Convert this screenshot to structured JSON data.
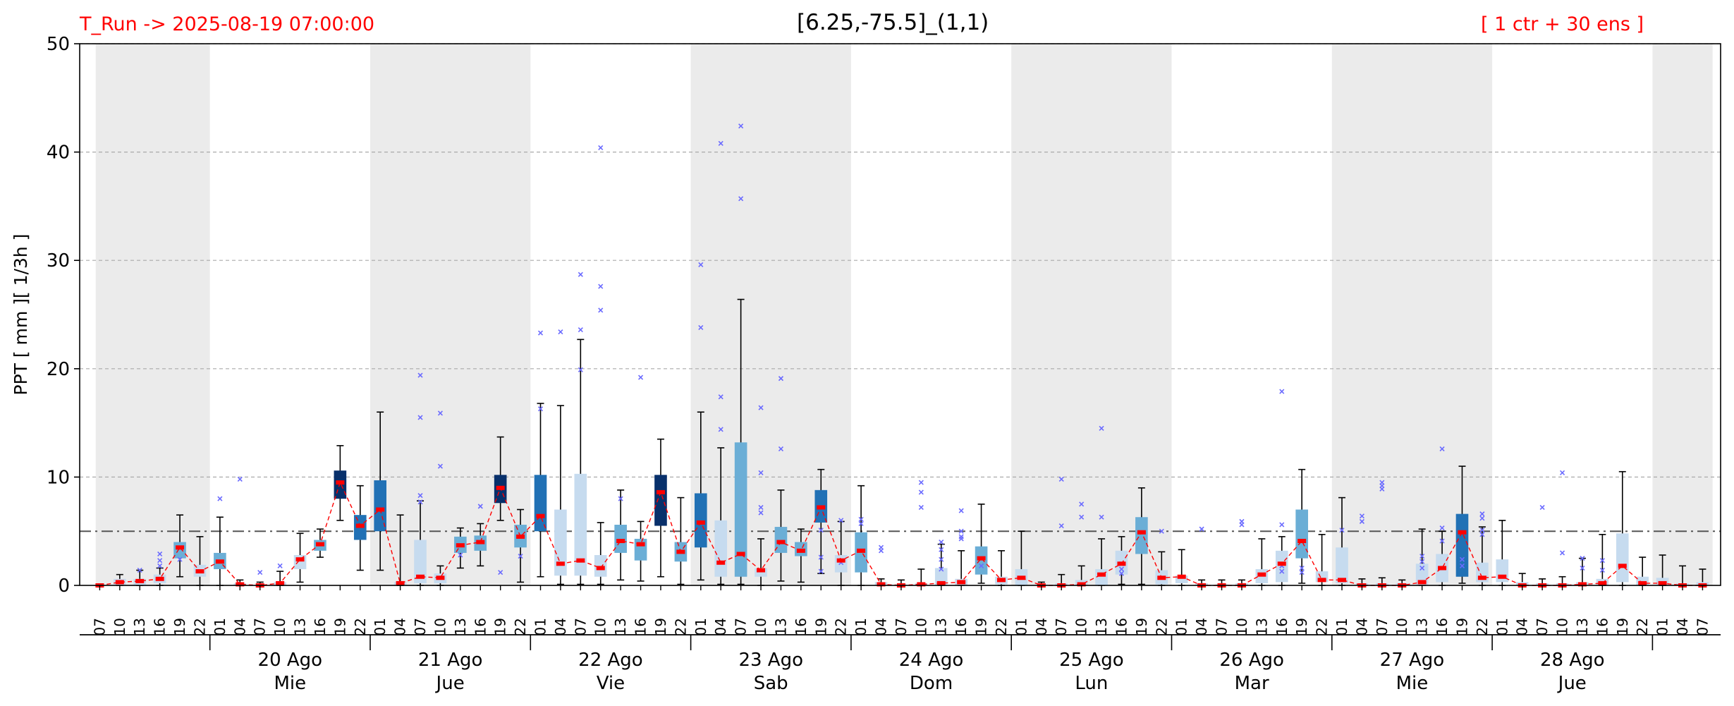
{
  "header": {
    "run_label": "T_Run -> 2025-08-19  07:00:00",
    "title": "[6.25,-75.5]_(1,1)",
    "ensemble_label": "[ 1 ctr + 30 ens ]"
  },
  "chart_data": {
    "type": "boxplot",
    "ylabel": "PPT  [ mm ][ 1/3h ]",
    "ylim": [
      0,
      50
    ],
    "yticks": [
      0,
      10,
      20,
      30,
      40,
      50
    ],
    "grid": true,
    "threshold": 5,
    "hours": [
      "07",
      "10",
      "13",
      "16",
      "19",
      "22",
      "01",
      "04",
      "07",
      "10",
      "13",
      "16",
      "19",
      "22",
      "01",
      "04",
      "07",
      "10",
      "13",
      "16",
      "19",
      "22",
      "01",
      "04",
      "07",
      "10",
      "13",
      "16",
      "19",
      "22",
      "01",
      "04",
      "07",
      "10",
      "13",
      "16",
      "19",
      "22",
      "01",
      "04",
      "07",
      "10",
      "13",
      "16",
      "19",
      "22",
      "01",
      "04",
      "07",
      "10",
      "13",
      "16",
      "19",
      "22",
      "01",
      "04",
      "07",
      "10",
      "13",
      "16",
      "19",
      "22",
      "01",
      "04",
      "07",
      "10",
      "13",
      "16",
      "19",
      "22",
      "01",
      "04",
      "07",
      "10",
      "13",
      "16",
      "19",
      "22",
      "01",
      "04",
      "07"
    ],
    "days": [
      {
        "date": "20 Ago",
        "weekday": "Mie"
      },
      {
        "date": "21 Ago",
        "weekday": "Jue"
      },
      {
        "date": "22 Ago",
        "weekday": "Vie"
      },
      {
        "date": "23 Ago",
        "weekday": "Sab"
      },
      {
        "date": "24 Ago",
        "weekday": "Dom"
      },
      {
        "date": "25 Ago",
        "weekday": "Lun"
      },
      {
        "date": "26 Ago",
        "weekday": "Mar"
      },
      {
        "date": "27 Ago",
        "weekday": "Mie"
      },
      {
        "date": "28 Ago",
        "weekday": "Jue"
      }
    ],
    "boxes": [
      [
        0,
        0,
        0,
        0,
        0
      ],
      [
        0,
        0,
        0.2,
        0.6,
        1
      ],
      [
        0,
        0,
        0.2,
        0.6,
        1.4
      ],
      [
        0,
        0.2,
        0.6,
        1,
        1.6
      ],
      [
        0.8,
        2.5,
        3.5,
        4,
        6.5
      ],
      [
        0,
        0.8,
        1.3,
        1.9,
        4.5
      ],
      [
        0,
        1.5,
        2.5,
        3,
        6.3
      ],
      [
        0,
        0,
        0,
        0.2,
        0.5
      ],
      [
        0,
        0,
        0,
        0,
        0.3
      ],
      [
        0,
        0,
        0.1,
        0.3,
        1.3
      ],
      [
        0.3,
        1.5,
        2.3,
        2.8,
        4.8
      ],
      [
        2.6,
        3.2,
        3.8,
        4.2,
        5.2
      ],
      [
        6,
        8,
        9.5,
        10.6,
        12.9
      ],
      [
        1.4,
        4.2,
        5.5,
        6.5,
        9.2
      ],
      [
        1.4,
        5,
        7,
        9.7,
        16
      ],
      [
        0,
        0,
        0.1,
        0.3,
        6.5
      ],
      [
        0,
        0.2,
        0.7,
        4.2,
        7.8
      ],
      [
        0,
        0.2,
        0.6,
        1.1,
        1.8
      ],
      [
        1.6,
        3,
        3.7,
        4.5,
        5.3
      ],
      [
        1.8,
        3.2,
        3.9,
        4.6,
        5.7
      ],
      [
        6,
        7.6,
        9.2,
        10.2,
        13.7
      ],
      [
        0.3,
        3.5,
        4.5,
        5.6,
        7
      ],
      [
        0.8,
        5,
        6.5,
        10.2,
        16.8
      ],
      [
        0.1,
        0.9,
        1.8,
        7,
        16.6
      ],
      [
        0.1,
        0.9,
        2.2,
        10.3,
        22.7
      ],
      [
        0.1,
        0.8,
        1.5,
        2.8,
        5.8
      ],
      [
        0.5,
        3,
        4,
        5.6,
        8.8
      ],
      [
        0.4,
        2.3,
        3.8,
        4.3,
        5.9
      ],
      [
        0.8,
        5.5,
        8.5,
        10.2,
        13.5
      ],
      [
        0.1,
        2.2,
        3,
        4,
        8.1
      ],
      [
        0.5,
        3.5,
        5.8,
        8.5,
        16
      ],
      [
        0.1,
        0.8,
        2.2,
        6,
        12.7
      ],
      [
        0.1,
        0.8,
        2.9,
        13.2,
        26.4
      ],
      [
        0,
        0.8,
        1.3,
        1.6,
        4.3
      ],
      [
        0.4,
        3,
        4,
        5.4,
        8.8
      ],
      [
        0.3,
        2.7,
        3.2,
        4,
        5.2
      ],
      [
        1.1,
        5.8,
        7.2,
        8.8,
        10.7
      ],
      [
        0,
        1.2,
        2.1,
        2.8,
        5.9
      ],
      [
        0,
        1.2,
        3.2,
        4.9,
        9.2
      ],
      [
        0,
        0,
        0,
        0.3,
        0.6
      ],
      [
        0,
        0,
        0,
        0.1,
        0.5
      ],
      [
        0,
        0,
        0.1,
        0.2,
        1.5
      ],
      [
        0,
        0,
        0.2,
        1.6,
        3.8
      ],
      [
        0,
        0,
        0.3,
        0.6,
        3.2
      ],
      [
        0.2,
        1,
        2.5,
        3.6,
        7.5
      ],
      [
        0,
        0.1,
        0.4,
        0.8,
        3.2
      ],
      [
        0,
        0,
        0.6,
        1.5,
        5
      ],
      [
        0,
        0,
        0,
        0.1,
        0.3
      ],
      [
        0,
        0,
        0,
        0.2,
        1
      ],
      [
        0,
        0,
        0.1,
        0.5,
        1.8
      ],
      [
        0,
        0,
        0.9,
        1.5,
        4.3
      ],
      [
        0.1,
        1,
        2,
        3.2,
        4.5
      ],
      [
        0.1,
        2.9,
        4.9,
        6.3,
        9
      ],
      [
        0,
        0.1,
        0.8,
        1.4,
        3.1
      ],
      [
        0,
        0.2,
        0.7,
        0.9,
        3.3
      ],
      [
        0,
        0,
        0,
        0.2,
        0.5
      ],
      [
        0,
        0,
        0,
        0.1,
        0.5
      ],
      [
        0,
        0,
        0,
        0.2,
        0.5
      ],
      [
        0,
        0.2,
        1,
        1.5,
        4.3
      ],
      [
        0,
        0.3,
        2,
        3.2,
        4.5
      ],
      [
        0.2,
        2.5,
        4,
        7,
        10.7
      ],
      [
        0,
        0.3,
        0.5,
        1.3,
        4.7
      ],
      [
        0,
        0.2,
        0.5,
        3.5,
        8.1
      ],
      [
        0,
        0,
        0,
        0.2,
        0.6
      ],
      [
        0,
        0,
        0,
        0.2,
        0.7
      ],
      [
        0,
        0,
        0,
        0.2,
        0.5
      ],
      [
        0,
        0,
        0.4,
        2,
        5.2
      ],
      [
        0,
        0.3,
        1.6,
        2.9,
        5
      ],
      [
        0.2,
        0.8,
        5,
        6.6,
        11
      ],
      [
        0,
        0.3,
        0.7,
        2.1,
        5.4
      ],
      [
        0,
        0.3,
        0.8,
        2.4,
        6
      ],
      [
        0,
        0,
        0,
        0.3,
        1.1
      ],
      [
        0,
        0,
        0,
        0.2,
        0.6
      ],
      [
        0,
        0,
        0,
        0.2,
        0.8
      ],
      [
        0,
        0,
        0,
        0.3,
        2.5
      ],
      [
        0,
        0,
        0.2,
        0.6,
        4.7
      ],
      [
        0,
        0.3,
        1.7,
        4.8,
        10.5
      ],
      [
        0,
        0,
        0.2,
        0.8,
        2.6
      ],
      [
        0,
        0,
        0.2,
        0.7,
        2.8
      ],
      [
        0,
        0,
        0,
        0.2,
        1.8
      ],
      [
        0,
        0,
        0,
        0.3,
        1.5
      ]
    ],
    "ensemble_mean": [
      0,
      0.3,
      0.4,
      0.6,
      3.5,
      1.3,
      2.2,
      0.1,
      0,
      0.2,
      2.4,
      3.8,
      9.5,
      5.5,
      7,
      0.2,
      0.8,
      0.7,
      3.7,
      4,
      9,
      4.5,
      6.4,
      2,
      2.3,
      1.6,
      4.1,
      3.8,
      8.6,
      3.1,
      5.8,
      2.1,
      2.9,
      1.4,
      4,
      3.2,
      7.2,
      2.3,
      3.2,
      0.1,
      0,
      0.1,
      0.2,
      0.3,
      2.5,
      0.5,
      0.7,
      0,
      0,
      0.1,
      1,
      2,
      4.9,
      0.7,
      0.8,
      0,
      0,
      0,
      1,
      2,
      4.1,
      0.5,
      0.5,
      0,
      0,
      0,
      0.3,
      1.6,
      4.9,
      0.7,
      0.8,
      0,
      0,
      0,
      0.1,
      0.2,
      1.8,
      0.2,
      0.2,
      0,
      0
    ],
    "outliers": [
      [
        2,
        1.4
      ],
      [
        3,
        1.8
      ],
      [
        3,
        2.3
      ],
      [
        3,
        2.9
      ],
      [
        4,
        2.4
      ],
      [
        6,
        8
      ],
      [
        7,
        9.8
      ],
      [
        8,
        1.2
      ],
      [
        9,
        1.8
      ],
      [
        16,
        8.3
      ],
      [
        16,
        7.7
      ],
      [
        16,
        19.4
      ],
      [
        16,
        15.5
      ],
      [
        17,
        11
      ],
      [
        17,
        15.9
      ],
      [
        18,
        2.8
      ],
      [
        19,
        7.3
      ],
      [
        20,
        1.2
      ],
      [
        21,
        2.7
      ],
      [
        22,
        16.3
      ],
      [
        22,
        23.3
      ],
      [
        23,
        23.4
      ],
      [
        24,
        28.7
      ],
      [
        24,
        23.6
      ],
      [
        24,
        19.9
      ],
      [
        25,
        25.4
      ],
      [
        25,
        27.6
      ],
      [
        25,
        40.4
      ],
      [
        26,
        8
      ],
      [
        27,
        19.2
      ],
      [
        30,
        29.6
      ],
      [
        30,
        23.8
      ],
      [
        31,
        40.8
      ],
      [
        31,
        17.4
      ],
      [
        31,
        14.4
      ],
      [
        32,
        42.4
      ],
      [
        32,
        35.7
      ],
      [
        33,
        16.4
      ],
      [
        33,
        10.4
      ],
      [
        33,
        7.2
      ],
      [
        33,
        6.7
      ],
      [
        34,
        19.1
      ],
      [
        34,
        12.6
      ],
      [
        36,
        5.1
      ],
      [
        36,
        2.6
      ],
      [
        36,
        1.3
      ],
      [
        37,
        6
      ],
      [
        37,
        2.1
      ],
      [
        38,
        6.1
      ],
      [
        38,
        5.7
      ],
      [
        39,
        3.5
      ],
      [
        39,
        3.2
      ],
      [
        41,
        9.5
      ],
      [
        41,
        8.6
      ],
      [
        41,
        7.2
      ],
      [
        42,
        1.5
      ],
      [
        42,
        2.4
      ],
      [
        42,
        3.3
      ],
      [
        42,
        4
      ],
      [
        43,
        6.9
      ],
      [
        43,
        5
      ],
      [
        43,
        4.5
      ],
      [
        43,
        4.3
      ],
      [
        44,
        1.8
      ],
      [
        48,
        9.8
      ],
      [
        48,
        5.5
      ],
      [
        49,
        7.5
      ],
      [
        49,
        6.3
      ],
      [
        50,
        14.5
      ],
      [
        50,
        6.3
      ],
      [
        51,
        1.1
      ],
      [
        51,
        1.5
      ],
      [
        51,
        2
      ],
      [
        53,
        5
      ],
      [
        55,
        5.2
      ],
      [
        57,
        5.9
      ],
      [
        57,
        5.6
      ],
      [
        59,
        17.9
      ],
      [
        59,
        5.6
      ],
      [
        59,
        1.8
      ],
      [
        59,
        1.3
      ],
      [
        60,
        1.6
      ],
      [
        60,
        1.2
      ],
      [
        62,
        5.1
      ],
      [
        63,
        6.4
      ],
      [
        63,
        5.9
      ],
      [
        64,
        9.5
      ],
      [
        64,
        9.2
      ],
      [
        64,
        8.9
      ],
      [
        66,
        2.7
      ],
      [
        66,
        1.6
      ],
      [
        66,
        2.2
      ],
      [
        67,
        12.6
      ],
      [
        67,
        5.3
      ],
      [
        67,
        4.1
      ],
      [
        68,
        2.4
      ],
      [
        68,
        1.8
      ],
      [
        69,
        6.6
      ],
      [
        69,
        6.2
      ],
      [
        69,
        5.1
      ],
      [
        69,
        4.7
      ],
      [
        72,
        7.2
      ],
      [
        73,
        10.4
      ],
      [
        73,
        3
      ],
      [
        74,
        2.5
      ],
      [
        74,
        1.6
      ],
      [
        75,
        2.3
      ],
      [
        75,
        1.4
      ]
    ],
    "colors": {
      "shade": "#ebebeb",
      "box_light": "#c6dbef",
      "box_mid_light": "#6baed6",
      "box_mid": "#2171b5",
      "box_dark": "#08306b",
      "mean": "#ff0000",
      "outlier": "#6b6bff",
      "threshold": "#555555",
      "grid": "#aaaaaa"
    }
  }
}
